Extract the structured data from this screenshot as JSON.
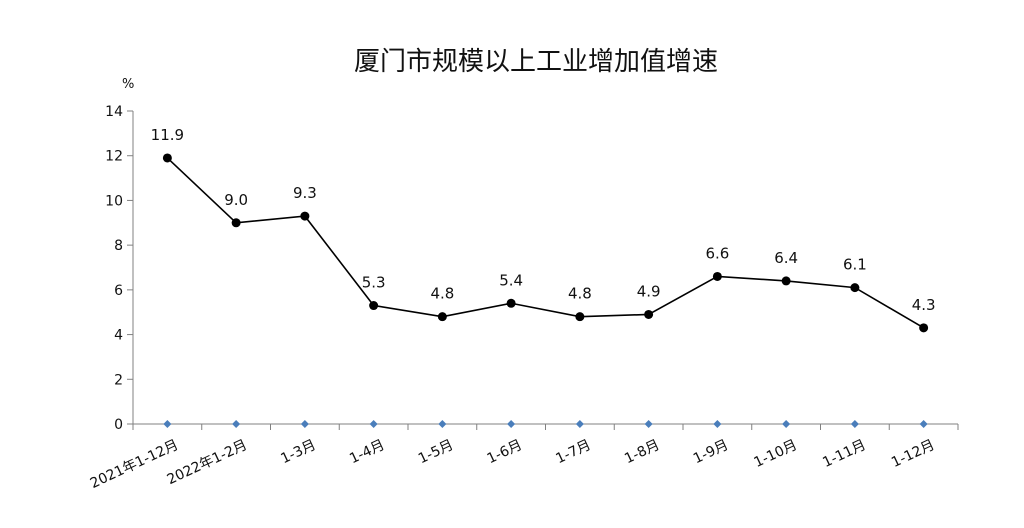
{
  "chart_data": {
    "type": "line",
    "title": "厦门市规模以上工业增加值增速",
    "unit": "%",
    "categories": [
      "2021年1-12月",
      "2022年1-2月",
      "1-3月",
      "1-4月",
      "1-5月",
      "1-6月",
      "1-7月",
      "1-8月",
      "1-9月",
      "1-10月",
      "1-11月",
      "1-12月"
    ],
    "series": [
      {
        "values": [
          11.9,
          9.0,
          9.3,
          5.3,
          4.8,
          5.4,
          4.8,
          4.9,
          6.6,
          6.4,
          6.1,
          4.3
        ],
        "value_labels": [
          "11.9",
          "9.0",
          "9.3",
          "5.3",
          "4.8",
          "5.4",
          "4.8",
          "4.9",
          "6.6",
          "6.4",
          "6.1",
          "4.3"
        ],
        "color": "#000000"
      },
      {
        "values": [
          0,
          0,
          0,
          0,
          0,
          0,
          0,
          0,
          0,
          0,
          0,
          0
        ],
        "color": "#4a7ebb",
        "marker": "diamond"
      }
    ],
    "yticks": [
      "0",
      "2",
      "4",
      "6",
      "8",
      "10",
      "12",
      "14"
    ],
    "ylim": [
      0,
      14
    ],
    "grid": false,
    "legend": false
  }
}
